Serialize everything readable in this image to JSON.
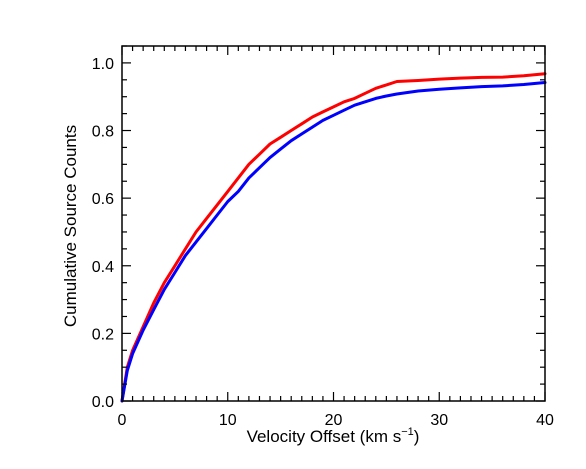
{
  "chart_data": {
    "type": "line",
    "xlabel": "Velocity Offset (km s",
    "xlabel_sup": "−1",
    "xlabel_close": ")",
    "ylabel": "Cumulative Source Counts",
    "xlim": [
      0,
      40
    ],
    "ylim": [
      0,
      1.05
    ],
    "grid": false,
    "x_ticks": [
      0,
      10,
      20,
      30,
      40
    ],
    "x_tick_labels": [
      "0",
      "10",
      "20",
      "30",
      "40"
    ],
    "y_ticks": [
      0.0,
      0.2,
      0.4,
      0.6,
      0.8,
      1.0
    ],
    "y_tick_labels": [
      "0.0",
      "0.2",
      "0.4",
      "0.6",
      "0.8",
      "1.0"
    ],
    "series": [
      {
        "color": "#ff0000",
        "x": [
          0,
          0.5,
          1,
          2,
          3,
          4,
          5,
          6,
          7,
          8,
          9,
          10,
          11,
          12,
          13,
          14,
          15,
          16,
          17,
          18,
          19,
          20,
          21,
          22,
          23,
          24,
          25,
          26,
          28,
          30,
          32,
          34,
          36,
          38,
          40
        ],
        "y": [
          0.0,
          0.1,
          0.15,
          0.22,
          0.29,
          0.35,
          0.4,
          0.45,
          0.5,
          0.54,
          0.58,
          0.62,
          0.66,
          0.7,
          0.73,
          0.76,
          0.78,
          0.8,
          0.82,
          0.84,
          0.855,
          0.87,
          0.885,
          0.895,
          0.91,
          0.925,
          0.935,
          0.945,
          0.948,
          0.952,
          0.955,
          0.957,
          0.958,
          0.962,
          0.968
        ]
      },
      {
        "color": "#0000ff",
        "x": [
          0,
          0.5,
          1,
          2,
          3,
          4,
          5,
          6,
          7,
          8,
          9,
          10,
          11,
          12,
          13,
          14,
          15,
          16,
          17,
          18,
          19,
          20,
          21,
          22,
          23,
          24,
          25,
          26,
          28,
          30,
          32,
          34,
          36,
          38,
          40
        ],
        "y": [
          0.0,
          0.09,
          0.14,
          0.21,
          0.27,
          0.33,
          0.38,
          0.43,
          0.47,
          0.51,
          0.55,
          0.59,
          0.62,
          0.66,
          0.69,
          0.72,
          0.745,
          0.77,
          0.79,
          0.81,
          0.83,
          0.845,
          0.86,
          0.875,
          0.885,
          0.895,
          0.902,
          0.908,
          0.917,
          0.922,
          0.926,
          0.93,
          0.932,
          0.936,
          0.942
        ]
      }
    ]
  }
}
